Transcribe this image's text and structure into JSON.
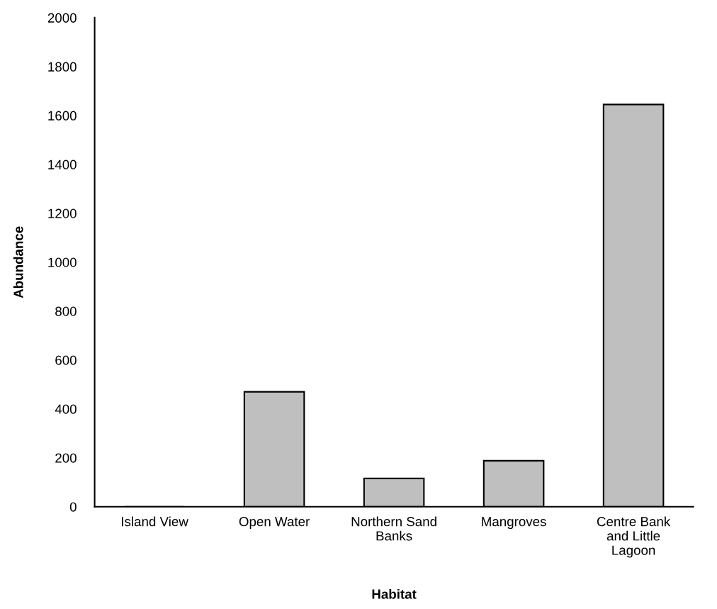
{
  "chart_data": {
    "type": "bar",
    "xlabel": "Habitat",
    "ylabel": "Abundance",
    "categories": [
      "Island View",
      "Open Water",
      "Northern Sand\nBanks",
      "Mangroves",
      "Centre Bank\nand Little\nLagoon"
    ],
    "values": [
      0,
      470,
      116,
      188,
      1645
    ],
    "color": "#bfbfbf",
    "ylim": [
      0,
      2000
    ],
    "yticks": [
      0,
      200,
      400,
      600,
      800,
      1000,
      1200,
      1400,
      1600,
      1800,
      2000
    ],
    "grid": false,
    "legend": false
  }
}
